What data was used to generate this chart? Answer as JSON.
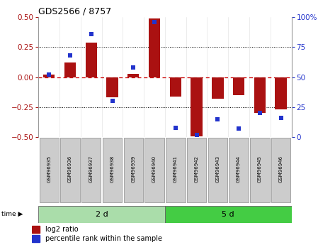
{
  "title": "GDS2566 / 8757",
  "samples": [
    "GSM96935",
    "GSM96936",
    "GSM96937",
    "GSM96938",
    "GSM96939",
    "GSM96940",
    "GSM96941",
    "GSM96942",
    "GSM96943",
    "GSM96944",
    "GSM96945",
    "GSM96946"
  ],
  "log2_ratio": [
    0.02,
    0.12,
    0.29,
    -0.17,
    0.03,
    0.49,
    -0.16,
    -0.49,
    -0.18,
    -0.15,
    -0.3,
    -0.27
  ],
  "percentile": [
    52,
    68,
    86,
    30,
    58,
    96,
    8,
    2,
    15,
    7,
    20,
    16
  ],
  "group1_label": "2 d",
  "group2_label": "5 d",
  "group1_count": 6,
  "group2_count": 6,
  "bar_color": "#aa1111",
  "dot_color": "#2233cc",
  "ylim": [
    -0.5,
    0.5
  ],
  "y2lim": [
    0,
    100
  ],
  "yticks": [
    -0.5,
    -0.25,
    0,
    0.25,
    0.5
  ],
  "y2ticks": [
    0,
    25,
    50,
    75,
    100
  ],
  "hline_color": "#cc0000",
  "hline_dotted_color": "black",
  "group1_color": "#aaddaa",
  "group2_color": "#44cc44",
  "sample_box_color": "#cccccc",
  "legend_label1": "log2 ratio",
  "legend_label2": "percentile rank within the sample",
  "bar_width": 0.55
}
